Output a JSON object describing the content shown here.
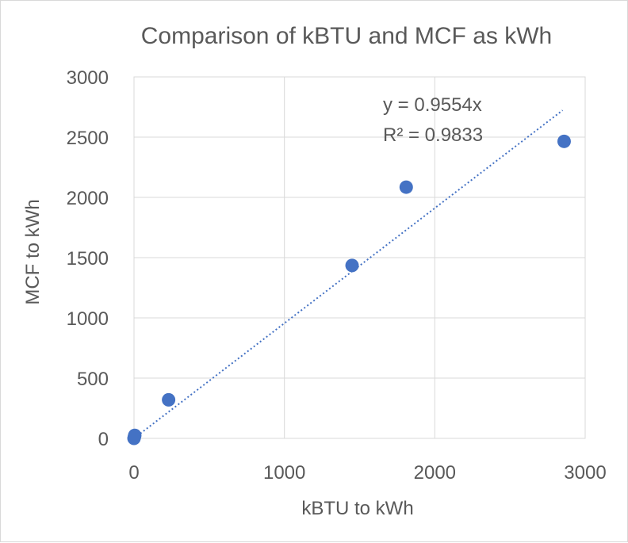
{
  "chart_data": {
    "type": "scatter",
    "title": "Comparison of kBTU and MCF as kWh",
    "xlabel": "kBTU to kWh",
    "ylabel": "MCF to kWh",
    "xlim": [
      0,
      3000
    ],
    "ylim": [
      0,
      3000
    ],
    "xticks": [
      "0",
      "1000",
      "2000",
      "3000"
    ],
    "yticks": [
      "0",
      "500",
      "1000",
      "1500",
      "2000",
      "2500",
      "3000"
    ],
    "grid": true,
    "series": [
      {
        "name": "MCF to kWh",
        "color": "#4472C4",
        "points": [
          {
            "x": 0,
            "y": 0
          },
          {
            "x": 3,
            "y": 15
          },
          {
            "x": 5,
            "y": 25
          },
          {
            "x": 230,
            "y": 320
          },
          {
            "x": 1450,
            "y": 1435
          },
          {
            "x": 1810,
            "y": 2085
          },
          {
            "x": 2860,
            "y": 2465
          }
        ]
      }
    ],
    "trendline": {
      "type": "linear",
      "slope": 0.9554,
      "x_range": [
        0,
        2850
      ],
      "color": "#4472C4",
      "equation_label": "y = 0.9554x",
      "r2_label": "R² = 0.9833"
    }
  }
}
